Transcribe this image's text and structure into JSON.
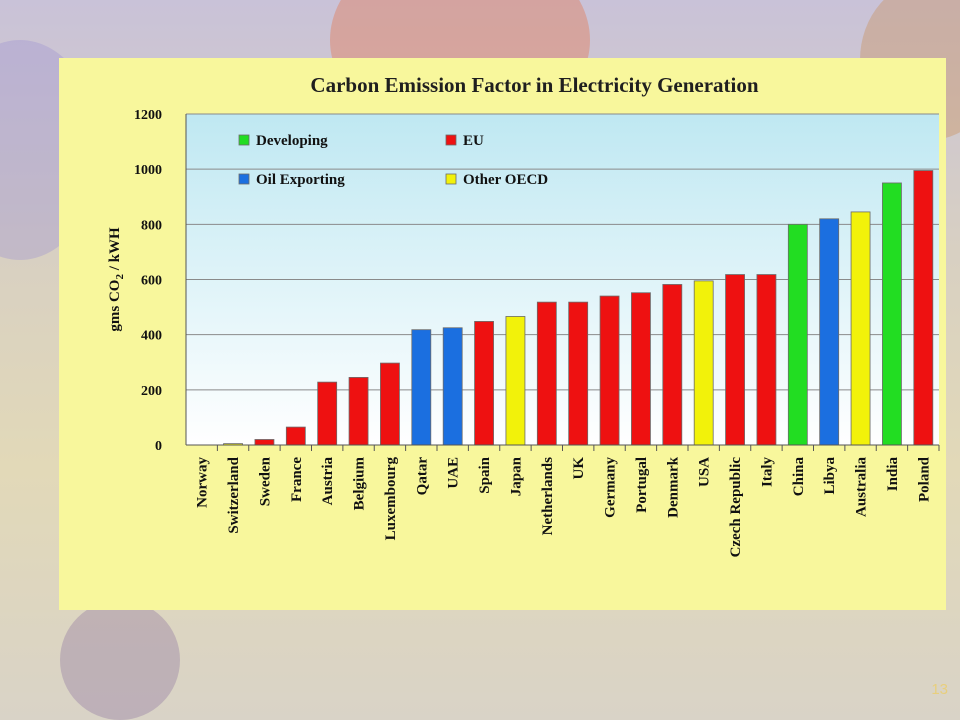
{
  "slide": {
    "number": "13"
  },
  "chart_data": {
    "type": "bar",
    "title": "Carbon Emission Factor in Electricity Generation",
    "ylabel_parts": [
      "gms CO",
      "2",
      " / kWH"
    ],
    "ylim": [
      0,
      1200
    ],
    "yticks": [
      0,
      200,
      400,
      600,
      800,
      1000,
      1200
    ],
    "grid": true,
    "legend_position": "top-left",
    "groups": [
      {
        "name": "Developing",
        "color": "#22dd22"
      },
      {
        "name": "EU",
        "color": "#ee1111"
      },
      {
        "name": "Oil Exporting",
        "color": "#1b6fe0"
      },
      {
        "name": "Other OECD",
        "color": "#f2f20a"
      }
    ],
    "categories": [
      "Norway",
      "Switzerland",
      "Sweden",
      "France",
      "Austria",
      "Belgium",
      "Luxembourg",
      "Qatar",
      "UAE",
      "Spain",
      "Japan",
      "Netherlands",
      "UK",
      "Germany",
      "Portugal",
      "Denmark",
      "USA",
      "Czech Republic",
      "Italy",
      "China",
      "Libya",
      "Australia",
      "India",
      "Poland"
    ],
    "values": [
      0,
      5,
      20,
      65,
      228,
      245,
      297,
      418,
      425,
      448,
      466,
      518,
      518,
      540,
      552,
      582,
      595,
      618,
      618,
      800,
      820,
      845,
      950,
      995
    ],
    "bar_groups": [
      "EU",
      "Other OECD",
      "EU",
      "EU",
      "EU",
      "EU",
      "EU",
      "Oil Exporting",
      "Oil Exporting",
      "EU",
      "Other OECD",
      "EU",
      "EU",
      "EU",
      "EU",
      "EU",
      "Other OECD",
      "EU",
      "EU",
      "Developing",
      "Oil Exporting",
      "Other OECD",
      "Developing",
      "EU"
    ]
  }
}
